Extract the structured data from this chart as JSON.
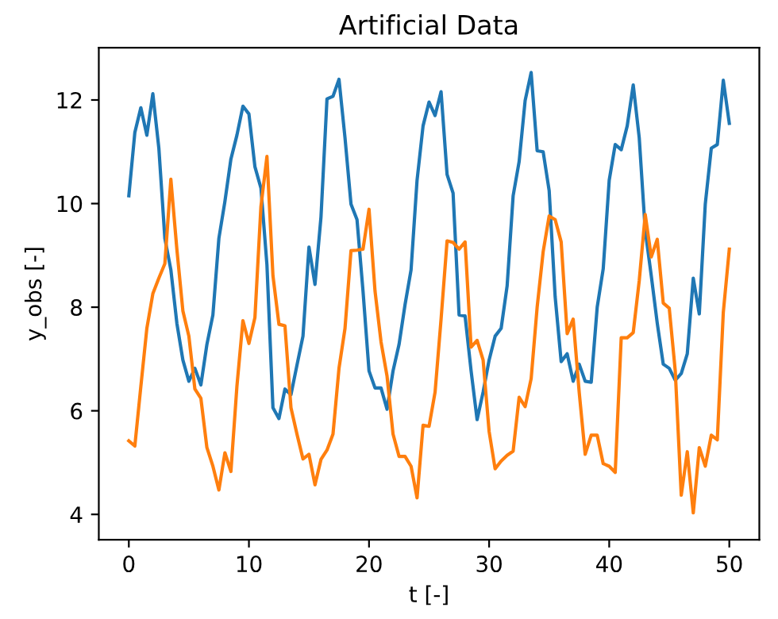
{
  "chart_data": {
    "type": "line",
    "title": "Artificial Data",
    "xlabel": "t [-]",
    "ylabel": "y_obs [-]",
    "x": [
      0,
      0.5,
      1,
      1.5,
      2,
      2.5,
      3,
      3.5,
      4,
      4.5,
      5,
      5.5,
      6,
      6.5,
      7,
      7.5,
      8,
      8.5,
      9,
      9.5,
      10,
      10.5,
      11,
      11.5,
      12,
      12.5,
      13,
      13.5,
      14,
      14.5,
      15,
      15.5,
      16,
      16.5,
      17,
      17.5,
      18,
      18.5,
      19,
      19.5,
      20,
      20.5,
      21,
      21.5,
      22,
      22.5,
      23,
      23.5,
      24,
      24.5,
      25,
      25.5,
      26,
      26.5,
      27,
      27.5,
      28,
      28.5,
      29,
      29.5,
      30,
      30.5,
      31,
      31.5,
      32,
      32.5,
      33,
      33.5,
      34,
      34.5,
      35,
      35.5,
      36,
      36.5,
      37,
      37.5,
      38,
      38.5,
      39,
      39.5,
      40,
      40.5,
      41,
      41.5,
      42,
      42.5,
      43,
      43.5,
      44,
      44.5,
      45,
      45.5,
      46,
      46.5,
      47,
      47.5,
      48,
      48.5,
      49,
      49.5,
      50
    ],
    "series": [
      {
        "color": "#1f77b4",
        "values": [
          10.15,
          11.37,
          11.85,
          11.32,
          12.12,
          11.07,
          9.33,
          8.72,
          7.69,
          6.98,
          6.57,
          6.82,
          6.5,
          7.28,
          7.85,
          9.33,
          10.04,
          10.86,
          11.32,
          11.88,
          11.73,
          10.71,
          10.3,
          8.82,
          6.06,
          5.85,
          6.42,
          6.31,
          6.88,
          7.44,
          9.16,
          8.44,
          9.74,
          12.02,
          12.07,
          12.4,
          11.27,
          9.99,
          9.69,
          8.31,
          6.77,
          6.44,
          6.44,
          6.03,
          6.77,
          7.28,
          8.05,
          8.72,
          10.45,
          11.5,
          11.96,
          11.7,
          12.16,
          10.56,
          10.2,
          7.85,
          7.83,
          6.77,
          5.83,
          6.36,
          6.98,
          7.44,
          7.59,
          8.41,
          10.15,
          10.81,
          11.99,
          12.53,
          11.02,
          11.0,
          10.25,
          8.2,
          6.95,
          7.1,
          6.57,
          6.9,
          6.57,
          6.55,
          8.0,
          8.74,
          10.45,
          11.14,
          11.04,
          11.5,
          12.29,
          11.27,
          9.48,
          8.61,
          7.69,
          6.9,
          6.82,
          6.59,
          6.72,
          7.1,
          8.56,
          7.87,
          9.99,
          11.07,
          11.14,
          12.38,
          11.55
        ]
      },
      {
        "color": "#ff7f0e",
        "values": [
          5.42,
          5.32,
          6.47,
          7.59,
          8.26,
          8.56,
          8.84,
          10.47,
          9.12,
          7.93,
          7.44,
          6.42,
          6.24,
          5.29,
          4.93,
          4.47,
          5.19,
          4.83,
          6.47,
          7.74,
          7.3,
          7.8,
          9.94,
          10.91,
          8.61,
          7.67,
          7.64,
          6.06,
          5.55,
          5.07,
          5.16,
          4.57,
          5.06,
          5.24,
          5.55,
          6.82,
          7.59,
          9.09,
          9.1,
          9.12,
          9.89,
          8.31,
          7.33,
          6.67,
          5.55,
          5.12,
          5.12,
          4.93,
          4.32,
          5.72,
          5.7,
          6.36,
          7.77,
          9.28,
          9.25,
          9.12,
          9.26,
          7.23,
          7.36,
          6.98,
          5.6,
          4.88,
          5.03,
          5.14,
          5.22,
          6.26,
          6.08,
          6.62,
          8.0,
          9.07,
          9.76,
          9.69,
          9.26,
          7.49,
          7.77,
          6.36,
          5.16,
          5.53,
          5.53,
          4.98,
          4.93,
          4.81,
          7.41,
          7.41,
          7.51,
          8.51,
          9.79,
          8.97,
          9.31,
          8.08,
          7.98,
          6.77,
          4.37,
          5.21,
          4.03,
          5.29,
          4.93,
          5.53,
          5.44,
          7.9,
          9.12
        ]
      }
    ],
    "xlim": [
      -2.5,
      52.5
    ],
    "xticks": [
      0,
      10,
      20,
      30,
      40,
      50
    ],
    "ylim": [
      3.51,
      13.01
    ],
    "yticks": [
      4,
      6,
      8,
      10,
      12
    ]
  }
}
